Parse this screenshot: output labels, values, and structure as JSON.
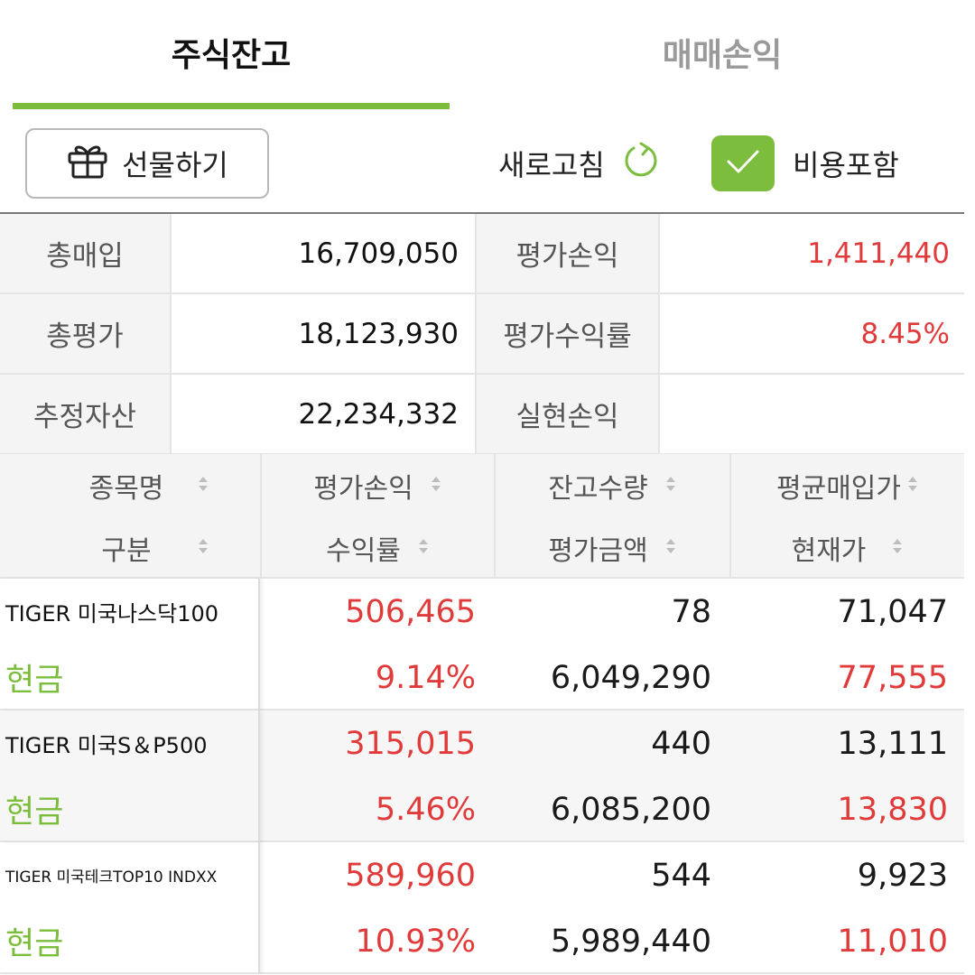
{
  "tabs": [
    {
      "label": "주식잔고",
      "active": true
    },
    {
      "label": "매매손익",
      "active": false
    }
  ],
  "toolbar": {
    "gift_label": "선물하기",
    "refresh_label": "새로고침",
    "cost_label": "비용포함",
    "cost_checked": true
  },
  "summary": {
    "total_purchase_label": "총매입",
    "total_purchase": "16,709,050",
    "eval_pl_label": "평가손익",
    "eval_pl": "1,411,440",
    "total_eval_label": "총평가",
    "total_eval": "18,123,930",
    "eval_return_label": "평가수익률",
    "eval_return": "8.45%",
    "est_assets_label": "추정자산",
    "est_assets": "22,234,332",
    "realized_pl_label": "실현손익",
    "realized_pl": ""
  },
  "header": {
    "name": "종목명",
    "type": "구분",
    "eval_pl": "평가손익",
    "return": "수익률",
    "qty": "잔고수량",
    "eval_amount": "평가금액",
    "avg_price": "평균매입가",
    "current_price": "현재가"
  },
  "rows": [
    {
      "name": "TIGER 미국나스닥100",
      "type": "현금",
      "eval_pl": "506,465",
      "return": "9.14%",
      "qty": "78",
      "eval_amount": "6,049,290",
      "avg_price": "71,047",
      "current_price": "77,555"
    },
    {
      "name": "TIGER 미국S＆P500",
      "type": "현금",
      "eval_pl": "315,015",
      "return": "5.46%",
      "qty": "440",
      "eval_amount": "6,085,200",
      "avg_price": "13,111",
      "current_price": "13,830"
    },
    {
      "name": "TIGER 미국테크TOP10 INDXX",
      "type": "현금",
      "eval_pl": "589,960",
      "return": "10.93%",
      "qty": "544",
      "eval_amount": "5,989,440",
      "avg_price": "9,923",
      "current_price": "11,010"
    }
  ],
  "colors": {
    "accent": "#7cbd3d",
    "profit": "#e03a3a"
  }
}
